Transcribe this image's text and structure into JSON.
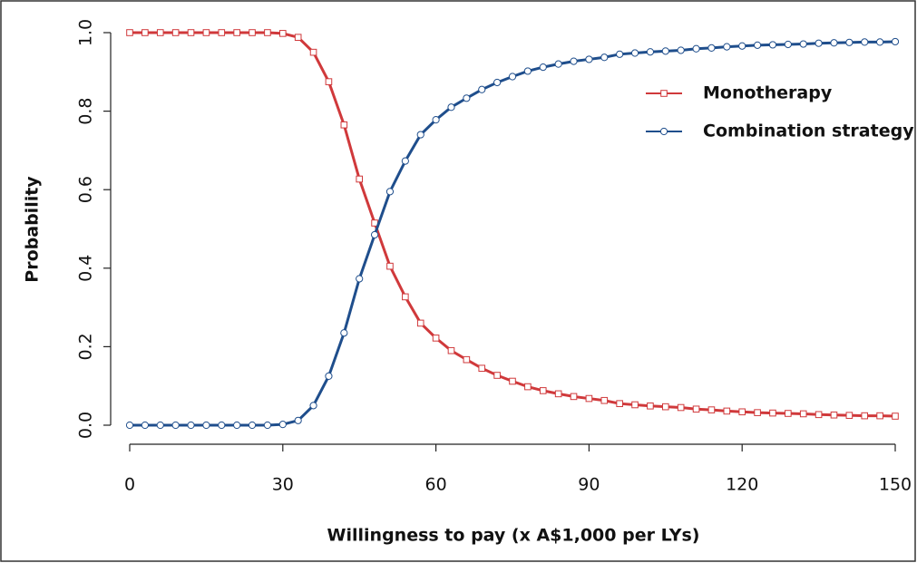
{
  "chart_data": {
    "type": "line",
    "xlabel": "Willingness to pay (x A$1,000  per LYs)",
    "ylabel": "Probability",
    "x": [
      0,
      3,
      6,
      9,
      12,
      15,
      18,
      21,
      24,
      27,
      30,
      33,
      36,
      39,
      42,
      45,
      48,
      51,
      54,
      57,
      60,
      63,
      66,
      69,
      72,
      75,
      78,
      81,
      84,
      87,
      90,
      93,
      96,
      99,
      102,
      105,
      108,
      111,
      114,
      117,
      120,
      123,
      126,
      129,
      132,
      135,
      138,
      141,
      144,
      147,
      150
    ],
    "series": [
      {
        "name": "Monotherapy",
        "color": "#d0393b",
        "marker": "square",
        "values": [
          1,
          1,
          1,
          1,
          1,
          1,
          1,
          1,
          1,
          1,
          0.998,
          0.988,
          0.95,
          0.875,
          0.765,
          0.627,
          0.515,
          0.405,
          0.327,
          0.26,
          0.222,
          0.19,
          0.167,
          0.145,
          0.127,
          0.112,
          0.098,
          0.088,
          0.08,
          0.073,
          0.068,
          0.063,
          0.055,
          0.052,
          0.049,
          0.047,
          0.045,
          0.041,
          0.039,
          0.036,
          0.034,
          0.032,
          0.031,
          0.03,
          0.029,
          0.027,
          0.026,
          0.025,
          0.024,
          0.024,
          0.023
        ]
      },
      {
        "name": "Combination strategy",
        "color": "#1f4e8c",
        "marker": "circle",
        "values": [
          0,
          0,
          0,
          0,
          0,
          0,
          0,
          0,
          0,
          0,
          0.002,
          0.012,
          0.05,
          0.125,
          0.235,
          0.373,
          0.485,
          0.595,
          0.673,
          0.74,
          0.778,
          0.81,
          0.833,
          0.855,
          0.873,
          0.888,
          0.902,
          0.912,
          0.92,
          0.927,
          0.932,
          0.937,
          0.945,
          0.948,
          0.951,
          0.953,
          0.955,
          0.959,
          0.961,
          0.964,
          0.966,
          0.968,
          0.969,
          0.97,
          0.971,
          0.973,
          0.974,
          0.975,
          0.976,
          0.976,
          0.977
        ]
      }
    ],
    "xlim": [
      0,
      150
    ],
    "xticks": [
      0,
      30,
      60,
      90,
      120,
      150
    ],
    "ylim": [
      0,
      1
    ],
    "yticks": [
      {
        "value": 0,
        "label": "0.0"
      },
      0.2,
      0.4,
      0.6,
      0.8,
      {
        "value": 1,
        "label": "1.0"
      }
    ],
    "legend": "upper right"
  }
}
